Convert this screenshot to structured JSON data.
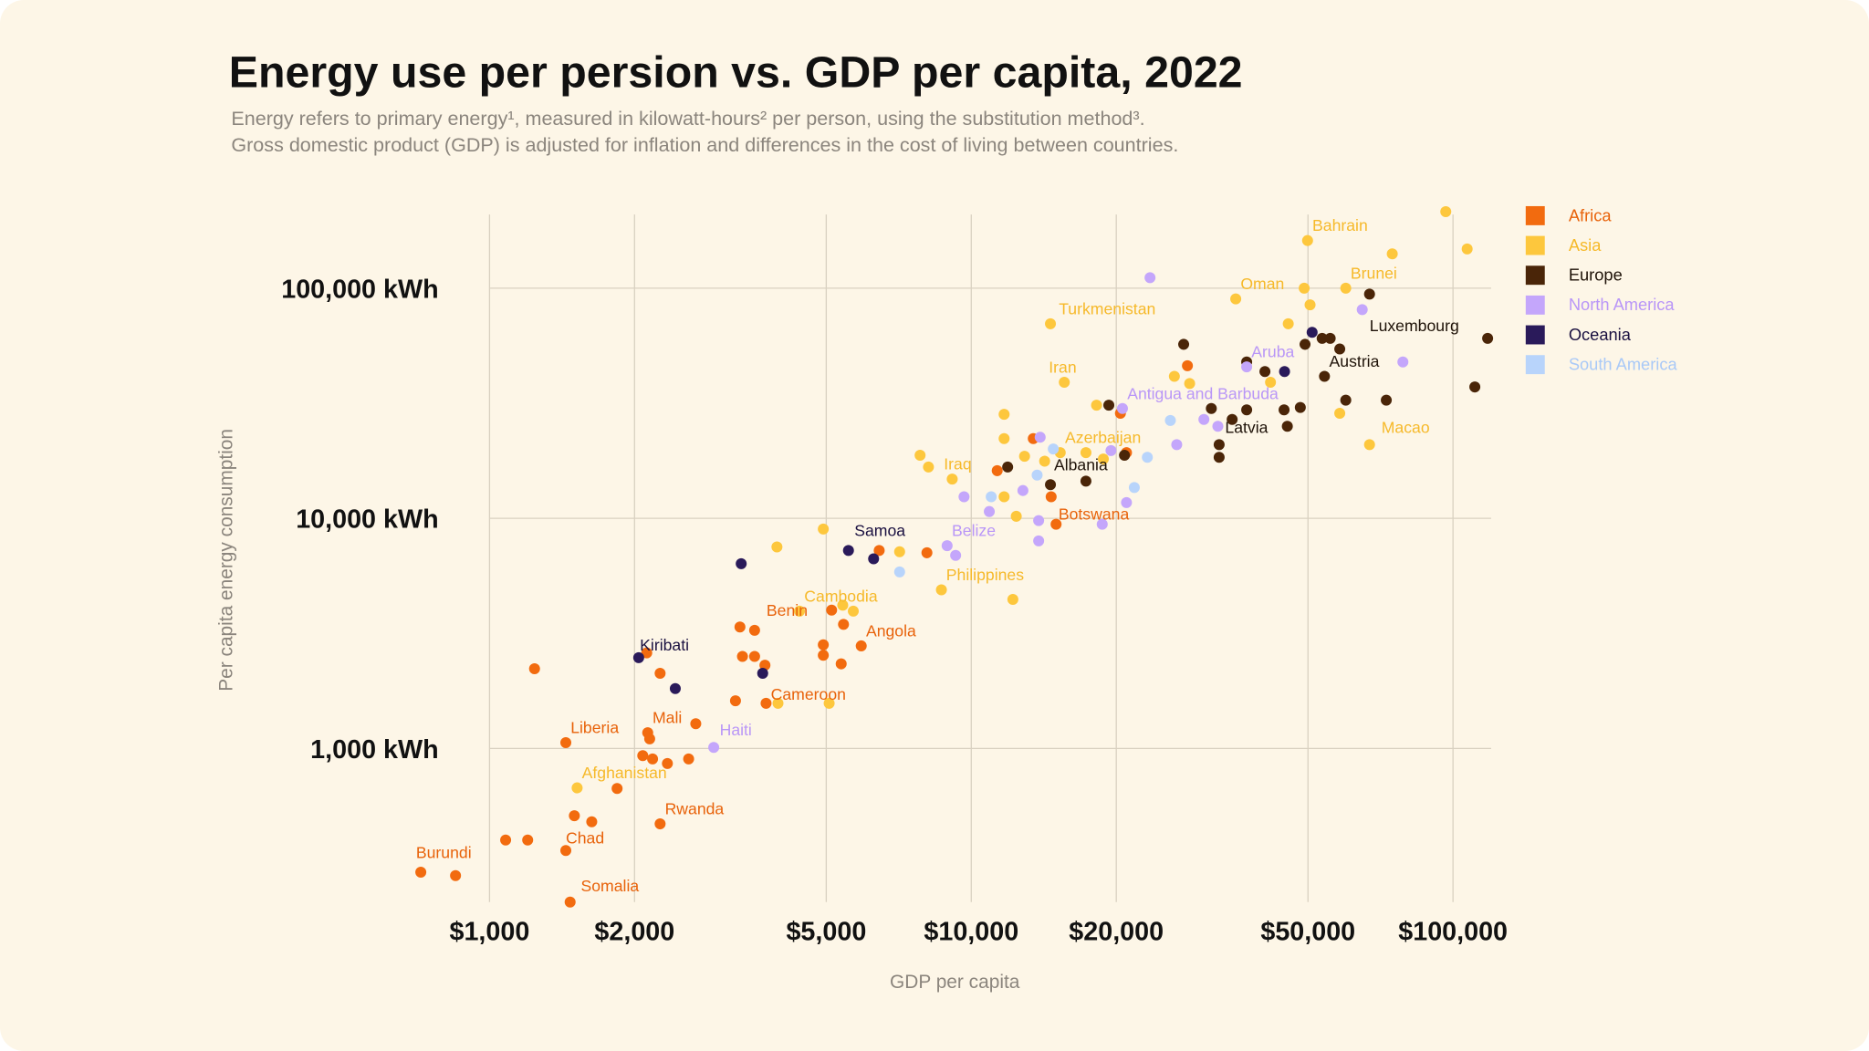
{
  "chart_data": {
    "type": "scatter",
    "title": "Energy use per persion vs. GDP per capita, 2022",
    "subtitle": [
      "Energy refers to primary energy¹, measured in kilowatt-hours² per person, using the substitution method³.",
      "Gross domestic product (GDP) is adjusted for inflation and differences in the cost of living between countries."
    ],
    "xlabel": "GDP per capita",
    "ylabel": "Per capita energy consumption",
    "xscale": "log",
    "yscale": "log",
    "xlim": [
      680,
      120000
    ],
    "ylim": [
      215,
      209000
    ],
    "grid": true,
    "legend_position": "right",
    "xticks": [
      {
        "v": 1000,
        "label": "$1,000"
      },
      {
        "v": 2000,
        "label": "$2,000"
      },
      {
        "v": 5000,
        "label": "$5,000"
      },
      {
        "v": 10000,
        "label": "$10,000"
      },
      {
        "v": 20000,
        "label": "$20,000"
      },
      {
        "v": 50000,
        "label": "$50,000"
      },
      {
        "v": 100000,
        "label": "$100,000"
      }
    ],
    "yticks": [
      {
        "v": 1000,
        "label": "1,000 kWh"
      },
      {
        "v": 10000,
        "label": "10,000 kWh"
      },
      {
        "v": 100000,
        "label": "100,000 kWh"
      }
    ],
    "series": [
      {
        "name": "Africa",
        "color": "#f26b0f",
        "label_color": "#e8620a",
        "points": [
          [
            720,
            290,
            "Burundi"
          ],
          [
            850,
            280
          ],
          [
            1080,
            400
          ],
          [
            1200,
            400
          ],
          [
            1440,
            360,
            "Chad"
          ],
          [
            1500,
            510
          ],
          [
            1630,
            480
          ],
          [
            1470,
            215,
            "Somalia"
          ],
          [
            2260,
            470,
            "Rwanda"
          ],
          [
            1840,
            670
          ],
          [
            1440,
            1060,
            "Liberia"
          ],
          [
            1240,
            2220
          ],
          [
            2080,
            930
          ],
          [
            2180,
            900
          ],
          [
            2340,
            860
          ],
          [
            2590,
            900
          ],
          [
            2130,
            1170,
            "Mali"
          ],
          [
            2150,
            1100
          ],
          [
            2680,
            1280
          ],
          [
            2260,
            2120
          ],
          [
            2120,
            2600
          ],
          [
            3240,
            1610
          ],
          [
            3750,
            1570,
            "Cameroon"
          ],
          [
            3310,
            3370
          ],
          [
            3550,
            3260,
            "Benin"
          ],
          [
            3350,
            2510
          ],
          [
            3550,
            2510
          ],
          [
            3730,
            2300
          ],
          [
            4930,
            2820
          ],
          [
            4930,
            2540
          ],
          [
            5130,
            3990
          ],
          [
            5430,
            3460
          ],
          [
            5370,
            2330
          ],
          [
            5910,
            2790,
            "Angola"
          ],
          [
            6440,
            7250
          ],
          [
            8090,
            7080
          ],
          [
            11320,
            16100
          ],
          [
            13450,
            22200
          ],
          [
            14650,
            12400
          ],
          [
            15000,
            9420,
            "Botswana"
          ],
          [
            20400,
            28600
          ],
          [
            21000,
            19300
          ],
          [
            28100,
            46000
          ]
        ]
      },
      {
        "name": "Asia",
        "color": "#fdc73d",
        "label_color": "#f6b92a",
        "points": [
          [
            49900,
            161000,
            "Bahrain"
          ],
          [
            96600,
            215000
          ],
          [
            107000,
            148000
          ],
          [
            74800,
            141000
          ],
          [
            59900,
            100000,
            "Brunei"
          ],
          [
            35400,
            89800,
            "Oman"
          ],
          [
            49100,
            100000
          ],
          [
            50500,
            84600
          ],
          [
            45500,
            70000
          ],
          [
            14600,
            70000,
            "Turkmenistan"
          ],
          [
            15600,
            39000,
            "Iran"
          ],
          [
            26400,
            41400
          ],
          [
            28400,
            38500
          ],
          [
            18200,
            31000
          ],
          [
            41800,
            39000
          ],
          [
            58200,
            28600
          ],
          [
            67100,
            20900,
            "Macao"
          ],
          [
            11700,
            28300
          ],
          [
            11700,
            22200
          ],
          [
            15300,
            19300,
            "Azerbaijan"
          ],
          [
            17300,
            19300
          ],
          [
            12900,
            18600
          ],
          [
            14200,
            17700
          ],
          [
            18800,
            18100
          ],
          [
            7830,
            18800
          ],
          [
            8150,
            16700
          ],
          [
            9130,
            14800,
            "Iraq"
          ],
          [
            11700,
            12400
          ],
          [
            12400,
            10200
          ],
          [
            4930,
            8980
          ],
          [
            3950,
            7510
          ],
          [
            7100,
            7160
          ],
          [
            8670,
            4890,
            "Philippines"
          ],
          [
            12200,
            4440
          ],
          [
            4400,
            3950,
            "Cambodia"
          ],
          [
            5410,
            4190
          ],
          [
            5690,
            3950
          ],
          [
            3970,
            1570
          ],
          [
            5070,
            1570
          ],
          [
            1520,
            674,
            "Afghanistan"
          ]
        ]
      },
      {
        "name": "Europe",
        "color": "#4a2508",
        "label_color": "#1e1208",
        "points": [
          [
            67100,
            94200
          ],
          [
            118000,
            60500,
            "Luxembourg"
          ],
          [
            111000,
            37200
          ],
          [
            53500,
            60500
          ],
          [
            55600,
            60500
          ],
          [
            49300,
            57000
          ],
          [
            58200,
            54400
          ],
          [
            27600,
            57000
          ],
          [
            37300,
            47800
          ],
          [
            40700,
            43400
          ],
          [
            54100,
            41400,
            "Austria"
          ],
          [
            31500,
            30000
          ],
          [
            37300,
            29600
          ],
          [
            44600,
            29600
          ],
          [
            48200,
            30300
          ],
          [
            59900,
            32600
          ],
          [
            72700,
            32600
          ],
          [
            34800,
            26900
          ],
          [
            32700,
            20900,
            "Latvia"
          ],
          [
            32700,
            18400
          ],
          [
            45300,
            25100
          ],
          [
            19300,
            31000
          ],
          [
            20800,
            18800
          ],
          [
            11900,
            16700
          ],
          [
            14600,
            14000,
            "Albania"
          ],
          [
            17300,
            14500
          ]
        ]
      },
      {
        "name": "North America",
        "color": "#c4a6fb",
        "label_color": "#b996f7",
        "points": [
          [
            23500,
            111000
          ],
          [
            78700,
            47800
          ],
          [
            64800,
            80700
          ],
          [
            37300,
            45500,
            "Aruba"
          ],
          [
            20600,
            30000,
            "Antigua and Barbuda"
          ],
          [
            30400,
            26900
          ],
          [
            32500,
            25100
          ],
          [
            26700,
            20900
          ],
          [
            13900,
            22500
          ],
          [
            12800,
            13200
          ],
          [
            9660,
            12400
          ],
          [
            10900,
            10700
          ],
          [
            13800,
            9770
          ],
          [
            13800,
            7980
          ],
          [
            21000,
            11700
          ],
          [
            18700,
            9420
          ],
          [
            19500,
            19700
          ],
          [
            8910,
            7600,
            "Belize"
          ],
          [
            9280,
            6900
          ],
          [
            2920,
            1010,
            "Haiti"
          ]
        ]
      },
      {
        "name": "Oceania",
        "color": "#2a1a5a",
        "label_color": "#1a1040",
        "points": [
          [
            5560,
            7250,
            "Samoa"
          ],
          [
            6270,
            6670
          ],
          [
            3330,
            6350
          ],
          [
            2040,
            2480,
            "Kiribati"
          ],
          [
            2430,
            1820
          ],
          [
            3690,
            2120
          ],
          [
            51000,
            64300
          ],
          [
            44700,
            43400
          ]
        ]
      },
      {
        "name": "South America",
        "color": "#b8d4fb",
        "label_color": "#a9c9f7",
        "points": [
          [
            7100,
            5850
          ],
          [
            11000,
            12400
          ],
          [
            13700,
            15400
          ],
          [
            14800,
            20000
          ],
          [
            21800,
            13600
          ],
          [
            23200,
            18400
          ],
          [
            25900,
            26600
          ]
        ]
      }
    ]
  }
}
